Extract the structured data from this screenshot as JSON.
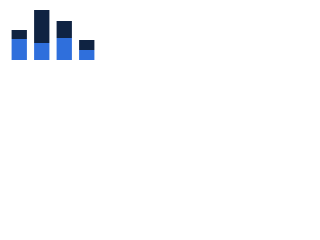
{
  "chart_data": {
    "type": "stacked-bar",
    "categories": [
      null,
      null,
      null,
      null
    ],
    "series": [
      {
        "color": "#2f6fdc",
        "values": [
          21,
          17,
          22,
          10
        ]
      },
      {
        "color": "#0f2342",
        "values": [
          9,
          33,
          17,
          10
        ]
      }
    ],
    "ylim": [
      0,
      55
    ]
  }
}
